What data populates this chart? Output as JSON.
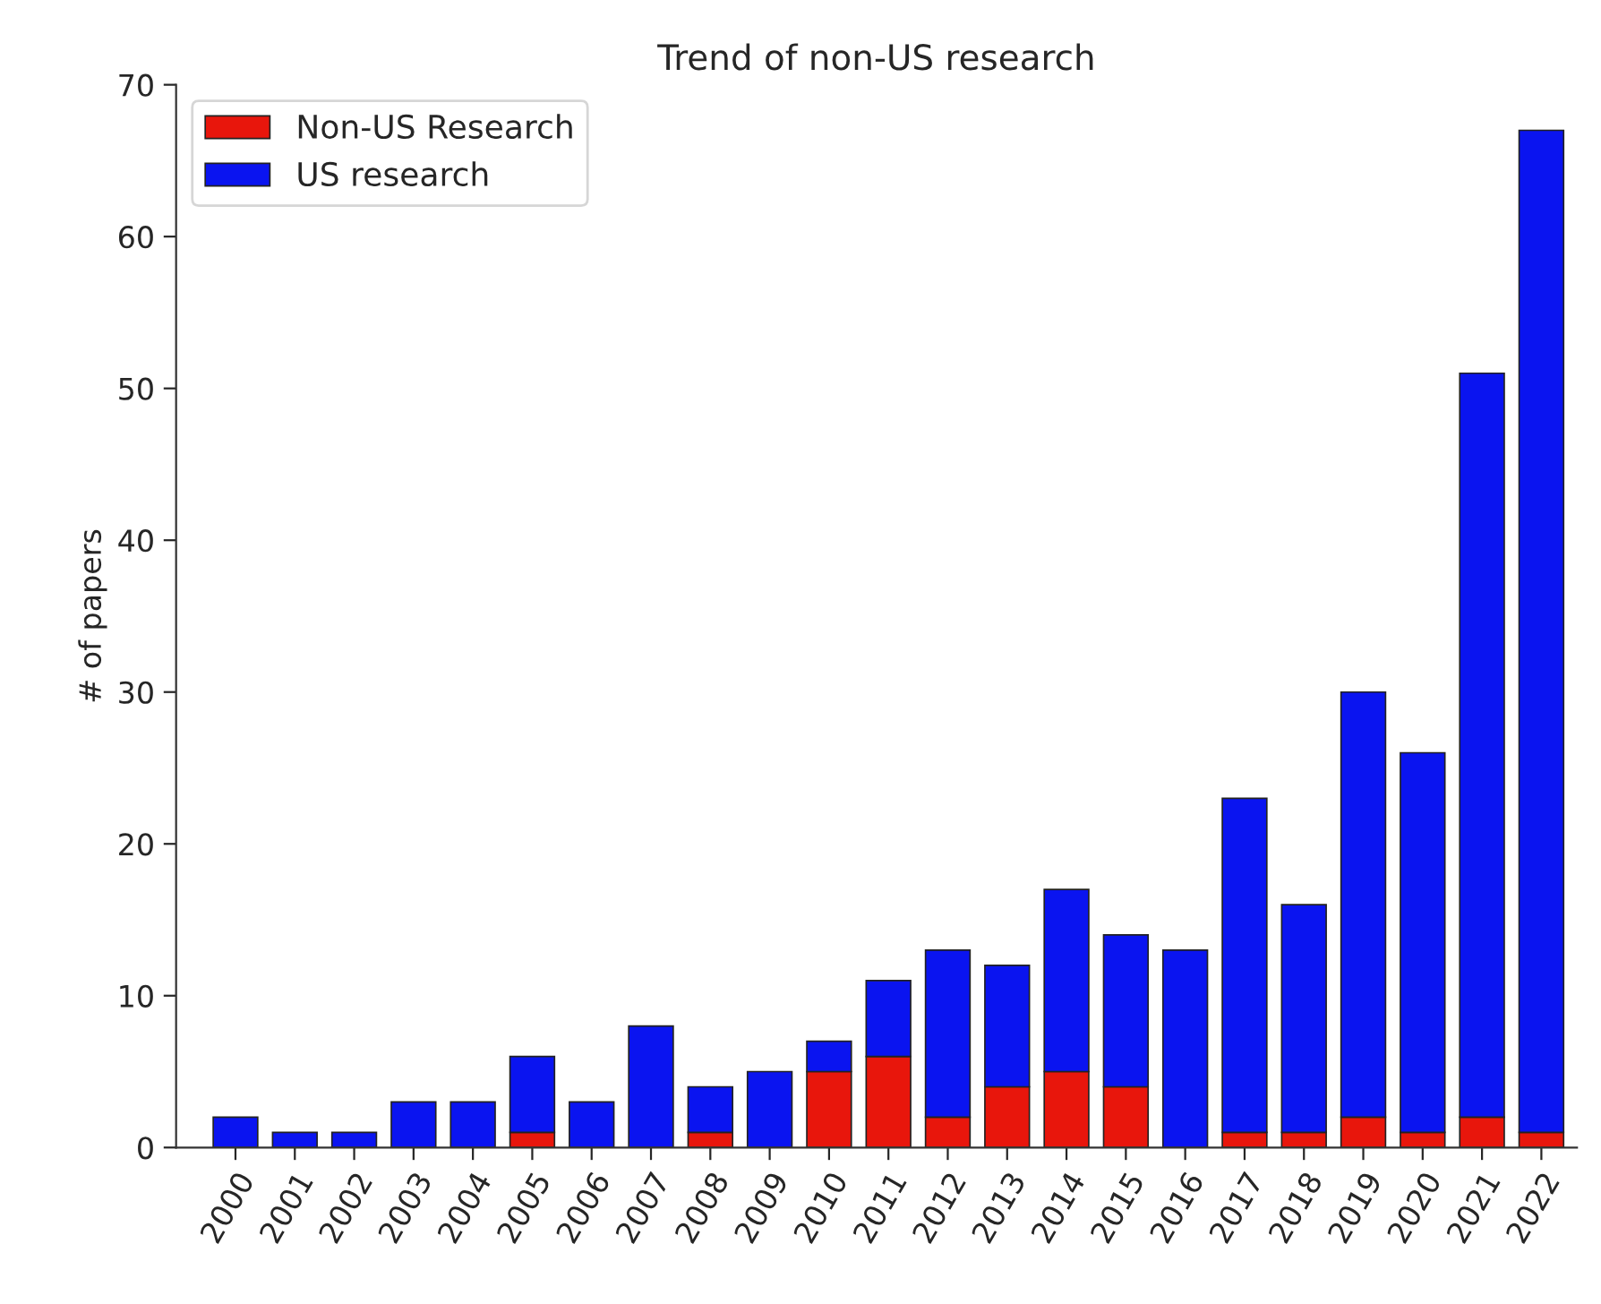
{
  "chart_data": {
    "type": "bar",
    "title": "Trend of non-US research",
    "ylabel": "# of papers",
    "stacked": true,
    "categories": [
      "2000",
      "2001",
      "2002",
      "2003",
      "2004",
      "2005",
      "2006",
      "2007",
      "2008",
      "2009",
      "2010",
      "2011",
      "2012",
      "2013",
      "2014",
      "2015",
      "2016",
      "2017",
      "2018",
      "2019",
      "2020",
      "2021",
      "2022"
    ],
    "series": [
      {
        "name": "Non-US Research",
        "color": "#e8160c",
        "values": [
          0,
          0,
          0,
          0,
          0,
          1,
          0,
          0,
          1,
          0,
          5,
          6,
          2,
          4,
          5,
          4,
          0,
          1,
          1,
          2,
          1,
          2,
          1
        ]
      },
      {
        "name": "US research",
        "color": "#0a14f0",
        "values": [
          2,
          1,
          1,
          3,
          3,
          5,
          3,
          8,
          3,
          5,
          2,
          5,
          11,
          8,
          12,
          10,
          13,
          22,
          15,
          28,
          25,
          49,
          66
        ]
      }
    ],
    "ylim": [
      0,
      70
    ],
    "yticks": [
      0,
      10,
      20,
      30,
      40,
      50,
      60,
      70
    ],
    "grid": false,
    "legend": "top left"
  }
}
